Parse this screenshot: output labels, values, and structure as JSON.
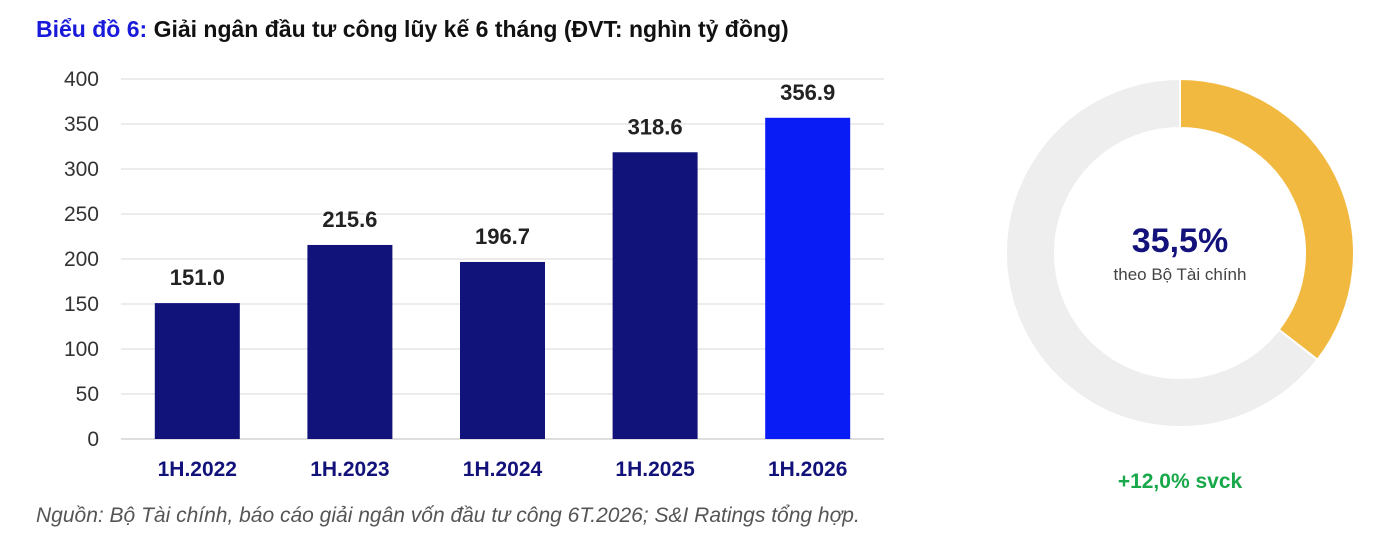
{
  "header": {
    "prefix": "Biểu đồ 6:",
    "title": "Giải ngân đầu tư công lũy kế 6 tháng (ĐVT: nghìn tỷ đồng)"
  },
  "chart_data": [
    {
      "type": "bar",
      "categories": [
        "1H.2022",
        "1H.2023",
        "1H.2024",
        "1H.2025",
        "1H.2026"
      ],
      "values": [
        151.0,
        215.6,
        196.7,
        318.6,
        356.9
      ],
      "value_labels": [
        "151.0",
        "215.6",
        "196.7",
        "318.6",
        "356.9"
      ],
      "colors": [
        "#12137a",
        "#12137a",
        "#12137a",
        "#12137a",
        "#0a1cf5"
      ],
      "ylim": [
        0,
        400
      ],
      "yticks": [
        0,
        50,
        100,
        150,
        200,
        250,
        300,
        350,
        400
      ],
      "grid": true,
      "xlabel": "",
      "ylabel": ""
    },
    {
      "type": "pie",
      "style": "donut",
      "values": [
        35.5,
        64.5
      ],
      "colors": [
        "#f2b941",
        "#eeeeee"
      ],
      "center_value": "35,5%",
      "center_label": "theo Bộ Tài chính",
      "footer": "+12,0% svck"
    }
  ],
  "source": "Nguồn: Bộ Tài chính, báo cáo giải ngân vốn đầu tư công 6T.2026; S&I Ratings tổng hợp."
}
